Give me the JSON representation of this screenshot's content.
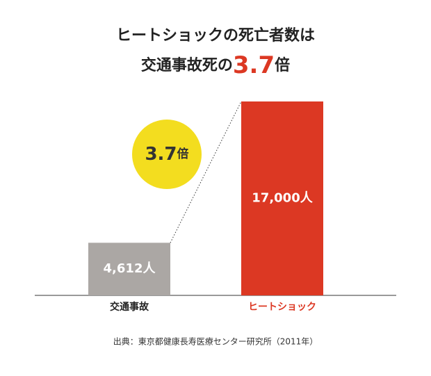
{
  "chart_data": {
    "type": "bar",
    "title": [
      "ヒートショックの死亡者数は",
      "交通事故死の",
      "3.7",
      "倍"
    ],
    "categories": [
      "交通事故",
      "ヒートショック"
    ],
    "values": [
      4612,
      17000
    ],
    "value_labels": [
      "4,612人",
      "17,000人"
    ],
    "colors": [
      "#aba7a4",
      "#dc3823"
    ],
    "category_label_colors": [
      "#222222",
      "#dc3823"
    ],
    "annotation": [
      "3.7",
      "倍"
    ],
    "annotation_color": "#f3dd1f",
    "source": "出典：東京都健康長寿医療センター研究所（2011年）"
  }
}
